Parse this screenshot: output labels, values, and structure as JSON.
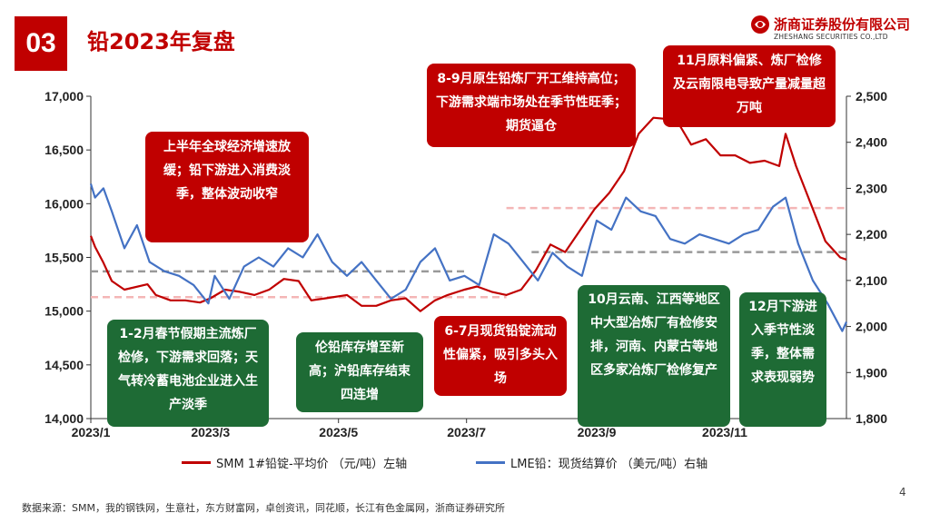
{
  "header": {
    "badge": "03",
    "title": "铅2023年复盘",
    "logo_cn": "浙商证券股份有限公司",
    "logo_en": "ZHESHANG SECURITIES CO.,LTD"
  },
  "chart_data": {
    "type": "line",
    "x_ticks": [
      "2023/1",
      "2023/3",
      "2023/5",
      "2023/7",
      "2023/9",
      "2023/11"
    ],
    "left_axis": {
      "min": 14000,
      "max": 17000,
      "ticks": [
        "17,000",
        "16,500",
        "16,000",
        "15,500",
        "15,000",
        "14,500",
        "14,000"
      ]
    },
    "right_axis": {
      "min": 1800,
      "max": 2500,
      "ticks": [
        "2,500",
        "2,400",
        "2,300",
        "2,200",
        "2,100",
        "2,000",
        "1,900",
        "1,800"
      ]
    },
    "series": [
      {
        "name": "SMM 1#铅锭-平均价 （元/吨）左轴",
        "axis": "left",
        "color": "#c00000",
        "points": [
          [
            "2023-01-03",
            15700
          ],
          [
            "2023-01-05",
            15600
          ],
          [
            "2023-01-09",
            15450
          ],
          [
            "2023-01-13",
            15280
          ],
          [
            "2023-01-19",
            15200
          ],
          [
            "2023-01-30",
            15250
          ],
          [
            "2023-02-03",
            15150
          ],
          [
            "2023-02-10",
            15100
          ],
          [
            "2023-02-17",
            15100
          ],
          [
            "2023-02-24",
            15080
          ],
          [
            "2023-03-01",
            15120
          ],
          [
            "2023-03-08",
            15200
          ],
          [
            "2023-03-15",
            15180
          ],
          [
            "2023-03-22",
            15150
          ],
          [
            "2023-03-29",
            15200
          ],
          [
            "2023-04-05",
            15300
          ],
          [
            "2023-04-12",
            15280
          ],
          [
            "2023-04-18",
            15100
          ],
          [
            "2023-04-25",
            15120
          ],
          [
            "2023-05-05",
            15150
          ],
          [
            "2023-05-12",
            15050
          ],
          [
            "2023-05-19",
            15050
          ],
          [
            "2023-05-26",
            15100
          ],
          [
            "2023-06-02",
            15120
          ],
          [
            "2023-06-09",
            15000
          ],
          [
            "2023-06-16",
            15100
          ],
          [
            "2023-06-22",
            15150
          ],
          [
            "2023-06-30",
            15200
          ],
          [
            "2023-07-06",
            15230
          ],
          [
            "2023-07-13",
            15180
          ],
          [
            "2023-07-20",
            15150
          ],
          [
            "2023-07-27",
            15200
          ],
          [
            "2023-08-03",
            15380
          ],
          [
            "2023-08-10",
            15620
          ],
          [
            "2023-08-17",
            15550
          ],
          [
            "2023-08-24",
            15750
          ],
          [
            "2023-08-31",
            15950
          ],
          [
            "2023-09-07",
            16100
          ],
          [
            "2023-09-14",
            16300
          ],
          [
            "2023-09-21",
            16650
          ],
          [
            "2023-09-28",
            16800
          ],
          [
            "2023-10-09",
            16780
          ],
          [
            "2023-10-16",
            16550
          ],
          [
            "2023-10-23",
            16600
          ],
          [
            "2023-10-30",
            16450
          ],
          [
            "2023-11-06",
            16450
          ],
          [
            "2023-11-13",
            16380
          ],
          [
            "2023-11-20",
            16400
          ],
          [
            "2023-11-27",
            16350
          ],
          [
            "2023-11-30",
            16650
          ],
          [
            "2023-12-05",
            16350
          ],
          [
            "2023-12-12",
            16000
          ],
          [
            "2023-12-19",
            15650
          ],
          [
            "2023-12-26",
            15500
          ],
          [
            "2023-12-29",
            15480
          ]
        ]
      },
      {
        "name": "LME铅：现货结算价 （美元/吨）右轴",
        "axis": "right",
        "color": "#4472c4",
        "points": [
          [
            "2023-01-03",
            2310
          ],
          [
            "2023-01-05",
            2280
          ],
          [
            "2023-01-09",
            2300
          ],
          [
            "2023-01-13",
            2250
          ],
          [
            "2023-01-19",
            2170
          ],
          [
            "2023-01-25",
            2220
          ],
          [
            "2023-01-31",
            2140
          ],
          [
            "2023-02-07",
            2120
          ],
          [
            "2023-02-14",
            2110
          ],
          [
            "2023-02-21",
            2090
          ],
          [
            "2023-02-28",
            2050
          ],
          [
            "2023-03-03",
            2110
          ],
          [
            "2023-03-10",
            2060
          ],
          [
            "2023-03-17",
            2130
          ],
          [
            "2023-03-24",
            2150
          ],
          [
            "2023-03-31",
            2130
          ],
          [
            "2023-04-07",
            2170
          ],
          [
            "2023-04-14",
            2150
          ],
          [
            "2023-04-21",
            2200
          ],
          [
            "2023-04-28",
            2140
          ],
          [
            "2023-05-05",
            2110
          ],
          [
            "2023-05-12",
            2140
          ],
          [
            "2023-05-19",
            2100
          ],
          [
            "2023-05-26",
            2060
          ],
          [
            "2023-06-02",
            2080
          ],
          [
            "2023-06-09",
            2140
          ],
          [
            "2023-06-16",
            2170
          ],
          [
            "2023-06-23",
            2100
          ],
          [
            "2023-06-30",
            2110
          ],
          [
            "2023-07-07",
            2090
          ],
          [
            "2023-07-14",
            2200
          ],
          [
            "2023-07-21",
            2180
          ],
          [
            "2023-07-28",
            2140
          ],
          [
            "2023-08-04",
            2100
          ],
          [
            "2023-08-11",
            2160
          ],
          [
            "2023-08-18",
            2130
          ],
          [
            "2023-08-25",
            2110
          ],
          [
            "2023-09-01",
            2230
          ],
          [
            "2023-09-08",
            2210
          ],
          [
            "2023-09-15",
            2280
          ],
          [
            "2023-09-22",
            2250
          ],
          [
            "2023-09-29",
            2240
          ],
          [
            "2023-10-06",
            2190
          ],
          [
            "2023-10-13",
            2180
          ],
          [
            "2023-10-20",
            2200
          ],
          [
            "2023-10-27",
            2190
          ],
          [
            "2023-11-03",
            2180
          ],
          [
            "2023-11-10",
            2200
          ],
          [
            "2023-11-17",
            2210
          ],
          [
            "2023-11-24",
            2260
          ],
          [
            "2023-11-30",
            2280
          ],
          [
            "2023-12-06",
            2180
          ],
          [
            "2023-12-13",
            2100
          ],
          [
            "2023-12-20",
            2050
          ],
          [
            "2023-12-27",
            1990
          ],
          [
            "2023-12-29",
            2010
          ]
        ]
      }
    ],
    "reference_lines": [
      {
        "axis": "left",
        "value": 15370,
        "color": "#999999",
        "from": "2023-01-03",
        "to": "2023-07-01"
      },
      {
        "axis": "left",
        "value": 15130,
        "color": "#f4b6b6",
        "from": "2023-01-03",
        "to": "2023-07-20"
      },
      {
        "axis": "left",
        "value": 15960,
        "color": "#f4b6b6",
        "from": "2023-07-20",
        "to": "2023-12-29"
      },
      {
        "axis": "left",
        "value": 15550,
        "color": "#999999",
        "from": "2023-08-01",
        "to": "2023-12-29"
      }
    ],
    "legend_position": "bottom",
    "grid": false
  },
  "callouts": {
    "c1": "上半年全球经济增速放缓；铅下游进入消费淡季，整体波动收窄",
    "c2": "8-9月原生铅炼厂开工维持高位；下游需求端市场处在季节性旺季；期货逼仓",
    "c3": "11月原料偏紧、炼厂检修及云南限电导致产量减量超万吨",
    "c4": "1-2月春节假期主流炼厂检修，下游需求回落；天气转冷蓄电池企业进入生产淡季",
    "c5": "伦铅库存增至新高；沪铅库存结束四连增",
    "c6": "6-7月现货铅锭流动性偏紧，吸引多头入场",
    "c7": "10月云南、江西等地区中大型冶炼厂有检修安排，河南、内蒙古等地区多家冶炼厂检修复产",
    "c8": "12月下游进入季节性淡季，整体需求表现弱势"
  },
  "legend": {
    "smm": "SMM 1#铅锭-平均价 （元/吨）左轴",
    "lme": "LME铅：现货结算价 （美元/吨）右轴"
  },
  "footer": {
    "source": "数据来源：SMM，我的钢铁网，生意社，东方财富网，卓创资讯，同花顺，长江有色金属网，浙商证券研究所",
    "page": "4"
  }
}
